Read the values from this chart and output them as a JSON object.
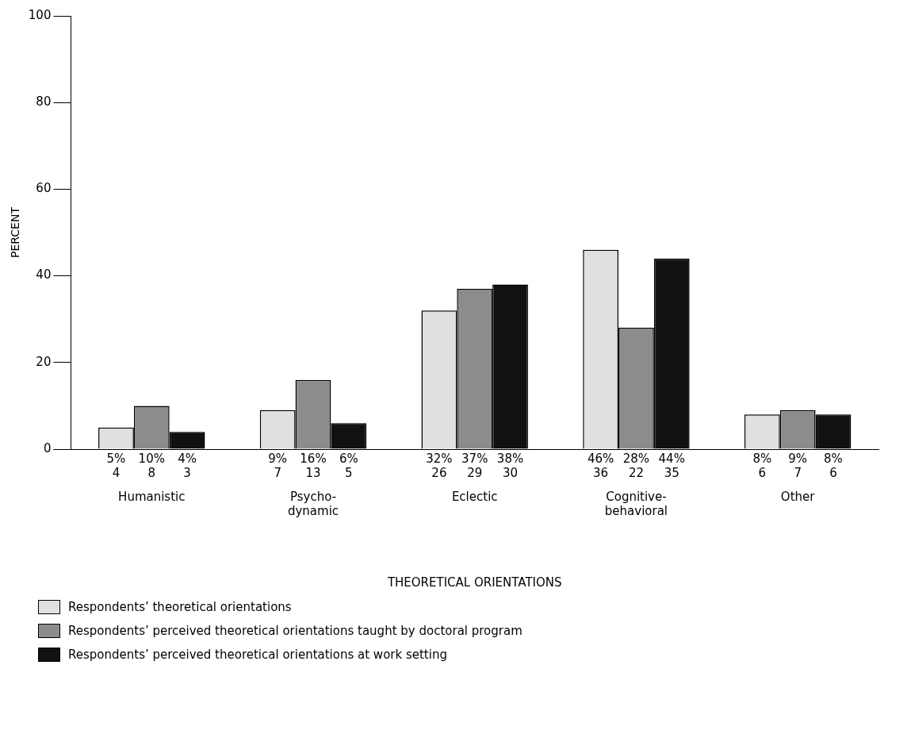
{
  "chart_data": {
    "type": "bar",
    "ylabel": "PERCENT",
    "xlabel": "THEORETICAL ORIENTATIONS",
    "categories": [
      "Humanistic",
      "Psycho-dynamic",
      "Eclectic",
      "Cognitive-behavioral",
      "Other"
    ],
    "series": [
      {
        "name": "Respondents’ theoretical orientations",
        "color": "#e0e0e0",
        "values": [
          5,
          9,
          32,
          46,
          8
        ],
        "value_labels": [
          "5%\n4",
          "9%\n7",
          "32%\n26",
          "46%\n36",
          "8%\n6"
        ]
      },
      {
        "name": "Respondents’ perceived theoretical orientations taught by doctoral program",
        "color": "#8c8c8c",
        "values": [
          10,
          16,
          37,
          28,
          9
        ],
        "value_labels": [
          "10%\n8",
          "16%\n13",
          "37%\n29",
          "28%\n22",
          "9%\n7"
        ]
      },
      {
        "name": "Respondents’ perceived theoretical orientations at work setting",
        "color": "#111111",
        "values": [
          4,
          6,
          38,
          44,
          8
        ],
        "value_labels": [
          "4%\n3",
          "6%\n5",
          "38%\n30",
          "44%\n35",
          "8%\n6"
        ]
      }
    ],
    "ylim": [
      0,
      100
    ],
    "yticks": [
      0,
      20,
      40,
      60,
      80,
      100
    ],
    "grid": false,
    "legend": "bottom"
  }
}
